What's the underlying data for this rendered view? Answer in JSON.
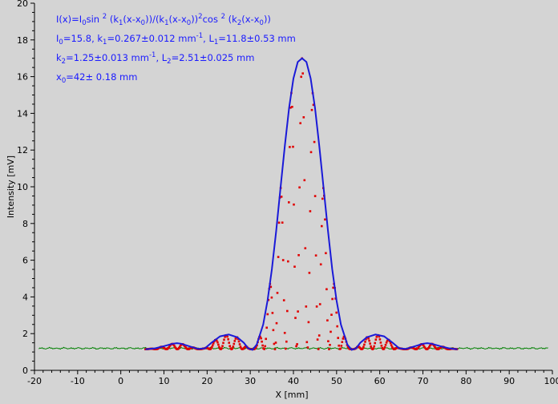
{
  "chart_data": {
    "type": "scatter",
    "title": "",
    "xlabel": "X [mm]",
    "ylabel": "Intensity [mV]",
    "xlim": [
      -20,
      100
    ],
    "ylim": [
      0,
      20
    ],
    "grid": false,
    "xticks": [
      "-20",
      "-10",
      "0",
      "10",
      "20",
      "30",
      "40",
      "50",
      "60",
      "70",
      "80",
      "90",
      "100"
    ],
    "yticks": [
      "0",
      "2",
      "4",
      "6",
      "8",
      "10",
      "12",
      "14",
      "16",
      "18",
      "20"
    ],
    "annotations": [
      {
        "parts": [
          {
            "t": "I(x)=I"
          },
          {
            "t": "0",
            "sub": true
          },
          {
            "t": "sin "
          },
          {
            "t": "2",
            "sup": true
          },
          {
            "t": " (k"
          },
          {
            "t": "1",
            "sub": true
          },
          {
            "t": "(x-x"
          },
          {
            "t": "0",
            "sub": true
          },
          {
            "t": "))/(k"
          },
          {
            "t": "1",
            "sub": true
          },
          {
            "t": "(x-x"
          },
          {
            "t": "0",
            "sub": true
          },
          {
            "t": "))"
          },
          {
            "t": "2",
            "sup": true
          },
          {
            "t": "cos "
          },
          {
            "t": "2",
            "sup": true
          },
          {
            "t": " (k"
          },
          {
            "t": "2",
            "sub": true
          },
          {
            "t": "(x-x"
          },
          {
            "t": "0",
            "sub": true
          },
          {
            "t": "))"
          }
        ]
      },
      {
        "parts": [
          {
            "t": "I"
          },
          {
            "t": "0",
            "sub": true
          },
          {
            "t": "=15.8,  k"
          },
          {
            "t": "1",
            "sub": true
          },
          {
            "t": "=0.267±0.012 mm"
          },
          {
            "t": "-1",
            "sup": true
          },
          {
            "t": ",   L"
          },
          {
            "t": "1",
            "sub": true
          },
          {
            "t": "=11.8±0.53 mm"
          }
        ]
      },
      {
        "parts": [
          {
            "t": "k"
          },
          {
            "t": "2",
            "sub": true
          },
          {
            "t": "=1.25±0.013 mm"
          },
          {
            "t": "-1",
            "sup": true
          },
          {
            "t": ",   L"
          },
          {
            "t": "2",
            "sub": true
          },
          {
            "t": "=2.51±0.025 mm"
          }
        ]
      },
      {
        "parts": [
          {
            "t": "x"
          },
          {
            "t": "0",
            "sub": true
          },
          {
            "t": "=42±  0.18 mm"
          }
        ]
      }
    ],
    "series": [
      {
        "kind": "measured-points",
        "color": "#e00000",
        "x_range": [
          5.7,
          78
        ],
        "peak_x": 42,
        "peak_y": 17.2,
        "baseline_y": 1.15
      },
      {
        "kind": "fit-envelope",
        "color": "#1a1ad8",
        "x_range": [
          5.7,
          78
        ],
        "points": [
          [
            5.7,
            1.15
          ],
          [
            8,
            1.2
          ],
          [
            10,
            1.32
          ],
          [
            12,
            1.45
          ],
          [
            13,
            1.48
          ],
          [
            14,
            1.45
          ],
          [
            16,
            1.3
          ],
          [
            18,
            1.16
          ],
          [
            19.5,
            1.2
          ],
          [
            21,
            1.5
          ],
          [
            23,
            1.85
          ],
          [
            25,
            1.95
          ],
          [
            27,
            1.8
          ],
          [
            28.5,
            1.5
          ],
          [
            29.5,
            1.2
          ],
          [
            30.5,
            1.12
          ],
          [
            31.5,
            1.4
          ],
          [
            33,
            2.5
          ],
          [
            34,
            3.8
          ],
          [
            35,
            5.5
          ],
          [
            36,
            7.6
          ],
          [
            37,
            9.9
          ],
          [
            38,
            12.2
          ],
          [
            39,
            14.3
          ],
          [
            40,
            15.9
          ],
          [
            41,
            16.8
          ],
          [
            42,
            17.0
          ],
          [
            43,
            16.8
          ],
          [
            44,
            15.9
          ],
          [
            45,
            14.3
          ],
          [
            46,
            12.2
          ],
          [
            47,
            9.9
          ],
          [
            48,
            7.6
          ],
          [
            49,
            5.5
          ],
          [
            50,
            3.8
          ],
          [
            51,
            2.5
          ],
          [
            52.5,
            1.4
          ],
          [
            53.5,
            1.12
          ],
          [
            54.5,
            1.2
          ],
          [
            55.5,
            1.5
          ],
          [
            57,
            1.8
          ],
          [
            59,
            1.95
          ],
          [
            61,
            1.85
          ],
          [
            63,
            1.5
          ],
          [
            64.5,
            1.2
          ],
          [
            66,
            1.16
          ],
          [
            68,
            1.3
          ],
          [
            70,
            1.45
          ],
          [
            71,
            1.48
          ],
          [
            72,
            1.45
          ],
          [
            74,
            1.32
          ],
          [
            76,
            1.2
          ],
          [
            78,
            1.15
          ]
        ]
      },
      {
        "kind": "baseline-trace",
        "color": "#008000",
        "x_range": [
          -20,
          100
        ],
        "level": 1.2
      }
    ]
  }
}
